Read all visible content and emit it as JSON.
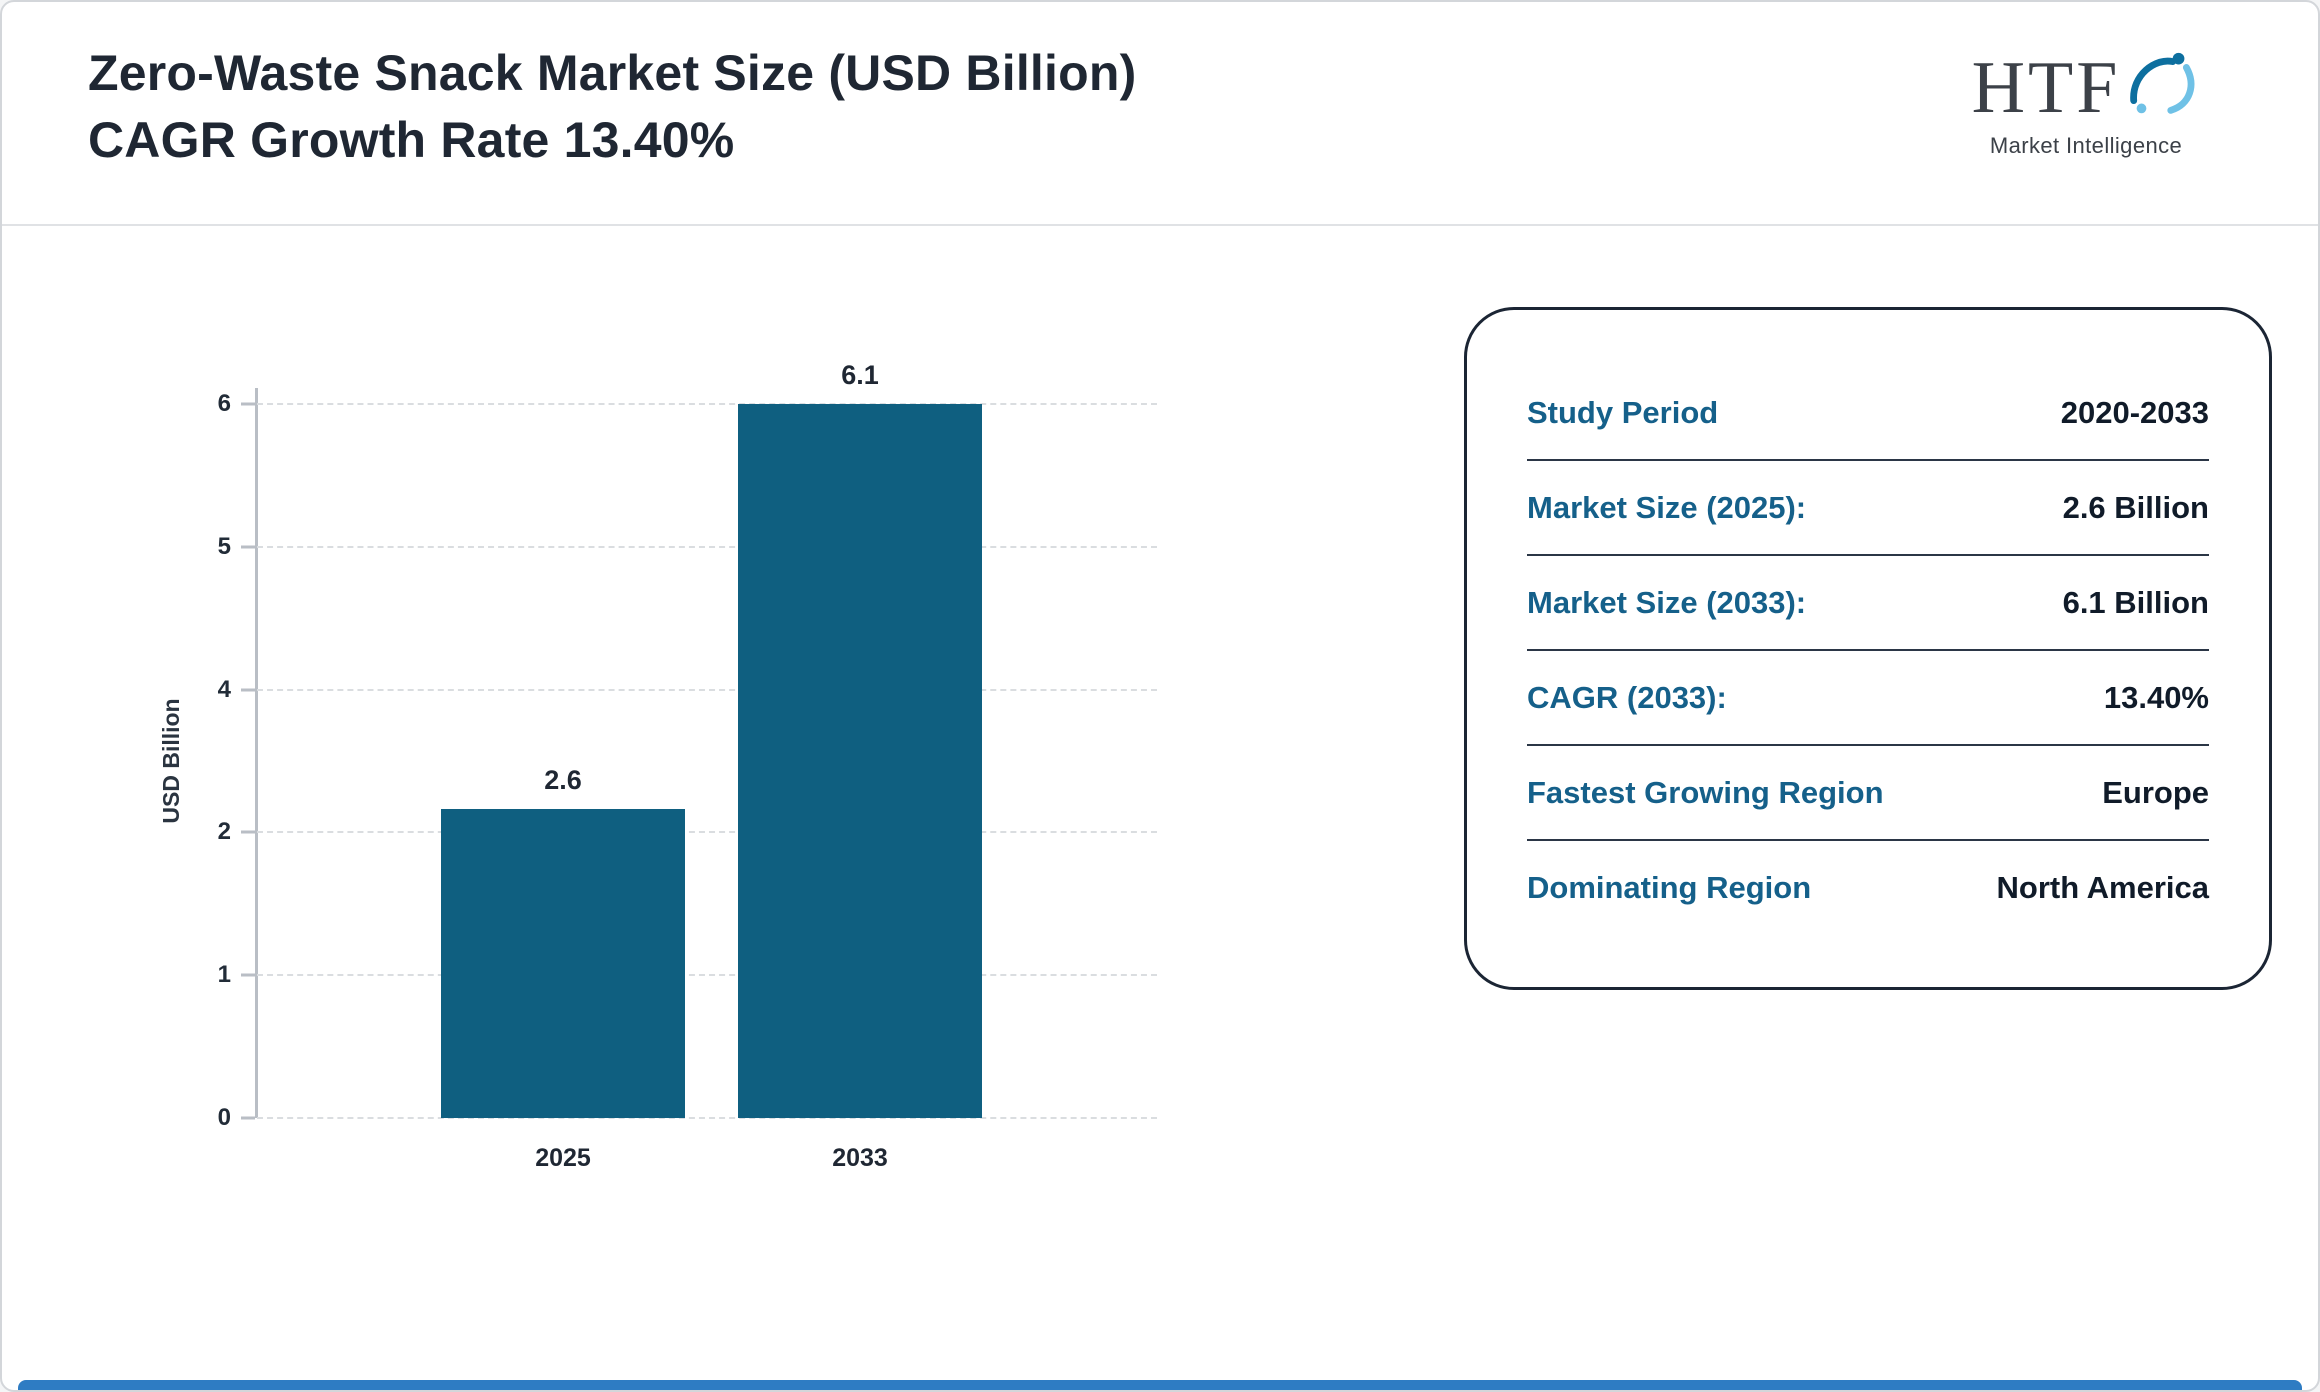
{
  "header": {
    "title_line1": "Zero-Waste Snack Market Size (USD Billion)",
    "title_line2": "CAGR Growth Rate 13.40%"
  },
  "logo": {
    "abbr": "HTF",
    "subtitle": "Market Intelligence"
  },
  "chart_data": {
    "type": "bar",
    "title": "Zero-Waste Snack Market Size (USD Billion) CAGR Growth Rate 13.40%",
    "categories": [
      "2025",
      "2033"
    ],
    "values": [
      2.6,
      6.1
    ],
    "bar_labels": [
      "2.6",
      "6.1"
    ],
    "xlabel": "",
    "ylabel": "USD Billion",
    "ylim": [
      0,
      6
    ],
    "ytick_labels": [
      "0",
      "1",
      "2",
      "4",
      "5",
      "6"
    ],
    "grid": "horizontal-dashed",
    "legend": "none",
    "bar_color": "#0f5f80"
  },
  "info_card": {
    "rows": [
      {
        "label": "Study Period",
        "value": "2020-2033"
      },
      {
        "label": "Market Size (2025):",
        "value": "2.6 Billion"
      },
      {
        "label": "Market Size (2033):",
        "value": "6.1 Billion"
      },
      {
        "label": "CAGR (2033):",
        "value": "13.40%"
      },
      {
        "label": "Fastest Growing Region",
        "value": "Europe"
      },
      {
        "label": "Dominating Region",
        "value": "North America"
      }
    ]
  },
  "colors": {
    "bar": "#0f5f80",
    "card_label_teal": "#15608a",
    "card_value_dark": "#101b29",
    "title_dark": "#1f2733",
    "footer_blue": "#2e7cc3"
  }
}
